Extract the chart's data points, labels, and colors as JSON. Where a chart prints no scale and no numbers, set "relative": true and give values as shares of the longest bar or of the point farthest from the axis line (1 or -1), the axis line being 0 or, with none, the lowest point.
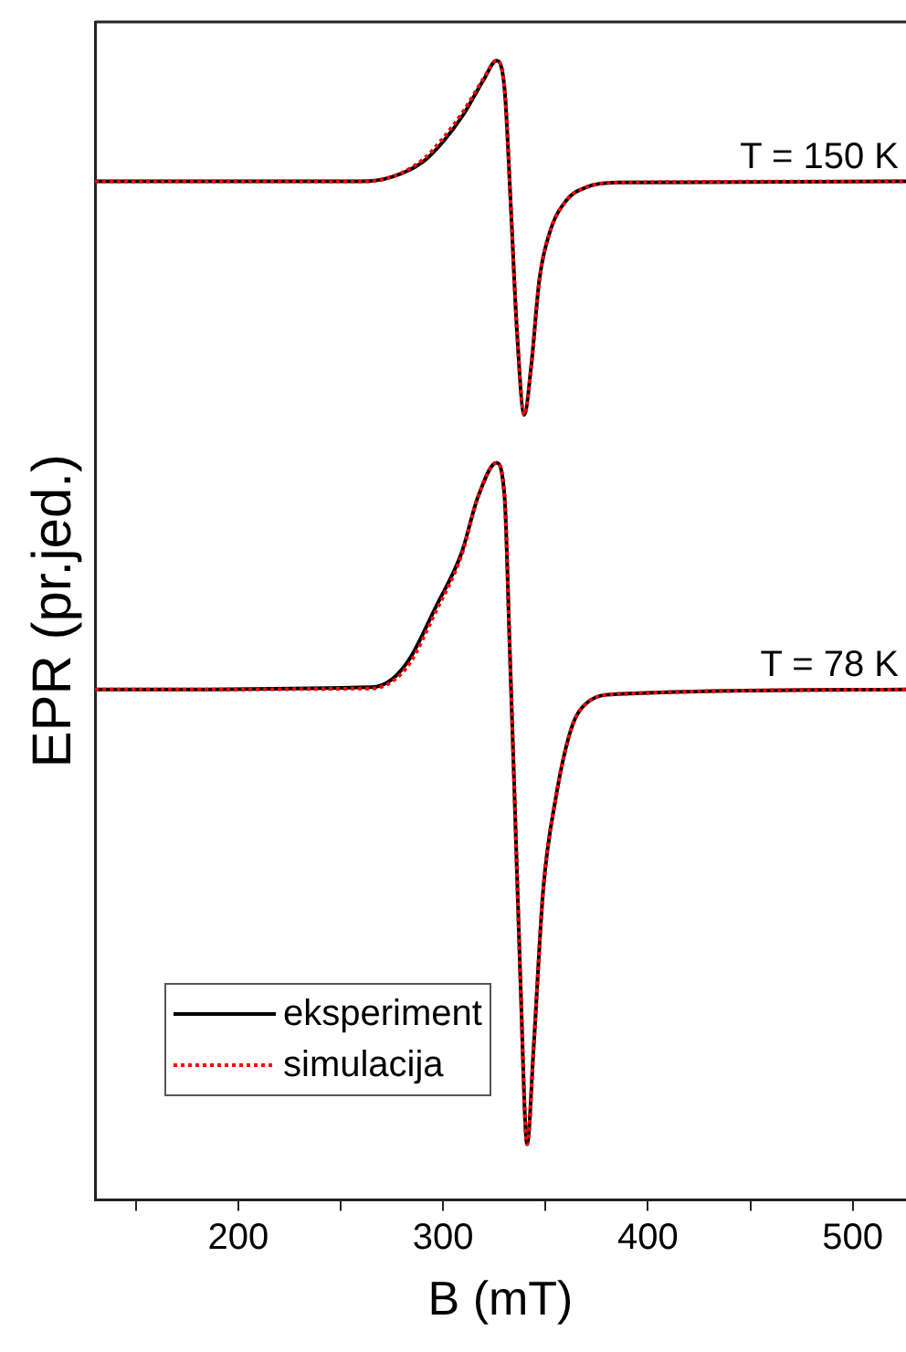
{
  "chart_data": {
    "type": "line",
    "relative": true,
    "xlabel": "B (mT)",
    "ylabel": "EPR (pr.jed.)",
    "xlim": [
      130,
      526
    ],
    "xticks": [
      {
        "value": 150,
        "label": null
      },
      200,
      {
        "value": 250,
        "label": null
      },
      300,
      {
        "value": 350,
        "label": null
      },
      400,
      {
        "value": 450,
        "label": null
      },
      500
    ],
    "grid": false,
    "legend": "bottom left",
    "marker": "none",
    "annotations": [
      {
        "text": "T = 150 K",
        "x": 526,
        "y": 0.894
      },
      {
        "text": "T = 78 K",
        "x": 526,
        "y": 0.448
      }
    ],
    "series": [
      {
        "name": "eksperiment",
        "color": "#000000",
        "line_style": "solid",
        "x": [
          130,
          260,
          275,
          290,
          300,
          310,
          320,
          326,
          330,
          333,
          336,
          339.6,
          343,
          347,
          352,
          360,
          370,
          385,
          526
        ],
        "values": [
          0.894,
          0.894,
          0.898,
          0.911,
          0.929,
          0.953,
          0.984,
          1.0,
          0.975,
          0.874,
          0.764,
          0.689,
          0.732,
          0.808,
          0.849,
          0.877,
          0.889,
          0.893,
          0.894
        ]
      },
      {
        "name": "simulacija",
        "color": "#ff0000",
        "line_style": "dotted",
        "x": [
          130,
          260,
          275,
          290,
          300,
          310,
          320,
          326,
          330,
          333,
          336,
          339.6,
          343,
          347,
          352,
          360,
          370,
          385,
          526
        ],
        "values": [
          0.894,
          0.894,
          0.898,
          0.913,
          0.932,
          0.956,
          0.985,
          1.0,
          0.975,
          0.874,
          0.764,
          0.689,
          0.732,
          0.808,
          0.849,
          0.877,
          0.889,
          0.893,
          0.894
        ]
      },
      {
        "color": "#000000",
        "line_style": "solid",
        "x": [
          130,
          265,
          275,
          284,
          296,
          309,
          317,
          326,
          330,
          332.5,
          334.9,
          337.8,
          341,
          344.2,
          348.8,
          355,
          362.6,
          370,
          385,
          526
        ],
        "values": [
          0.448,
          0.45,
          0.457,
          0.476,
          0.519,
          0.568,
          0.617,
          0.647,
          0.617,
          0.485,
          0.353,
          0.189,
          0.049,
          0.134,
          0.271,
          0.353,
          0.414,
          0.436,
          0.444,
          0.448
        ]
      },
      {
        "color": "#ff0000",
        "line_style": "dotted",
        "x": [
          130,
          265,
          275,
          284,
          296,
          309,
          317,
          326,
          330,
          332.5,
          334.9,
          337.8,
          341,
          344.2,
          348.8,
          355,
          362.6,
          370,
          385,
          526
        ],
        "values": [
          0.448,
          0.449,
          0.455,
          0.472,
          0.515,
          0.566,
          0.617,
          0.647,
          0.617,
          0.485,
          0.353,
          0.189,
          0.049,
          0.134,
          0.271,
          0.353,
          0.414,
          0.436,
          0.444,
          0.448
        ]
      }
    ]
  }
}
